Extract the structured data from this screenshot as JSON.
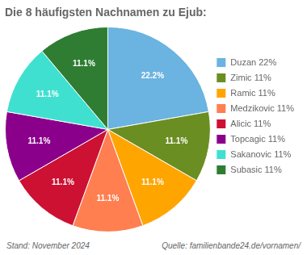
{
  "chart_data": {
    "type": "pie",
    "title": "Die 8 häufigsten Nachnamen zu Ejub:",
    "categories": [
      "Duzan 22%",
      "Zimic 11%",
      "Ramic 11%",
      "Medzikovic 11%",
      "Alicic 11%",
      "Topcagic 11%",
      "Sakanovic 11%",
      "Subasic 11%"
    ],
    "values": [
      22.2,
      11.1,
      11.1,
      11.1,
      11.1,
      11.1,
      11.1,
      11.1
    ],
    "value_labels": [
      "22.2%",
      "11.1%",
      "11.1%",
      "11.1%",
      "11.1%",
      "11.1%",
      "11.1%",
      "11.1%"
    ],
    "colors": [
      "#6BB3E0",
      "#6B8E23",
      "#FFA500",
      "#FF7F50",
      "#CC1133",
      "#8B008B",
      "#40E0D0",
      "#2E7D32"
    ],
    "legend": "right",
    "data_labels": true,
    "annotations": [
      "Stand: November 2024",
      "Quelle: familienbande24.de/vornamen/"
    ]
  }
}
